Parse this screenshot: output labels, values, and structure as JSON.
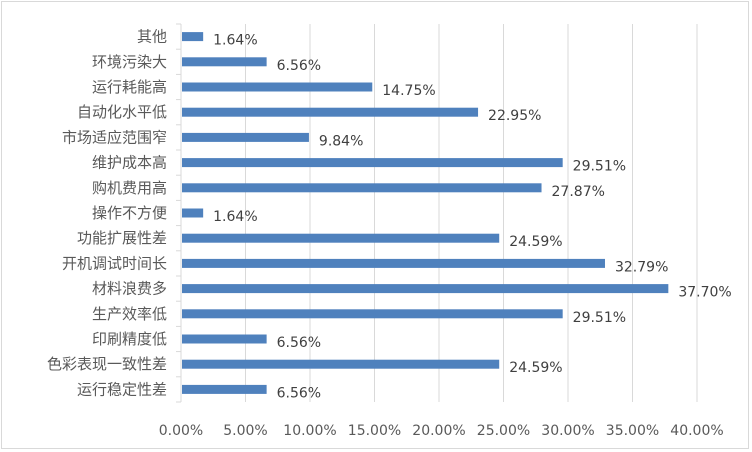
{
  "chart_data": {
    "type": "bar",
    "orientation": "horizontal",
    "title": "",
    "xlabel": "",
    "ylabel": "",
    "categories": [
      "其他",
      "环境污染大",
      "运行耗能高",
      "自动化水平低",
      "市场适应范围窄",
      "维护成本高",
      "购机费用高",
      "操作不方便",
      "功能扩展性差",
      "开机调试时间长",
      "材料浪费多",
      "生产效率低",
      "印刷精度低",
      "色彩表现一致性差",
      "运行稳定性差"
    ],
    "values": [
      1.64,
      6.56,
      14.75,
      22.95,
      9.84,
      29.51,
      27.87,
      1.64,
      24.59,
      32.79,
      37.7,
      29.51,
      6.56,
      24.59,
      6.56
    ],
    "data_labels": [
      "1.64%",
      "6.56%",
      "14.75%",
      "22.95%",
      "9.84%",
      "29.51%",
      "27.87%",
      "1.64%",
      "24.59%",
      "32.79%",
      "37.70%",
      "29.51%",
      "6.56%",
      "24.59%",
      "6.56%"
    ],
    "xlim": [
      0,
      40
    ],
    "xticks": [
      "0.00%",
      "5.00%",
      "10.00%",
      "15.00%",
      "20.00%",
      "25.00%",
      "30.00%",
      "35.00%",
      "40.00%"
    ],
    "grid": "vertical",
    "legend": "none",
    "bar_color": "#4f81bd"
  }
}
